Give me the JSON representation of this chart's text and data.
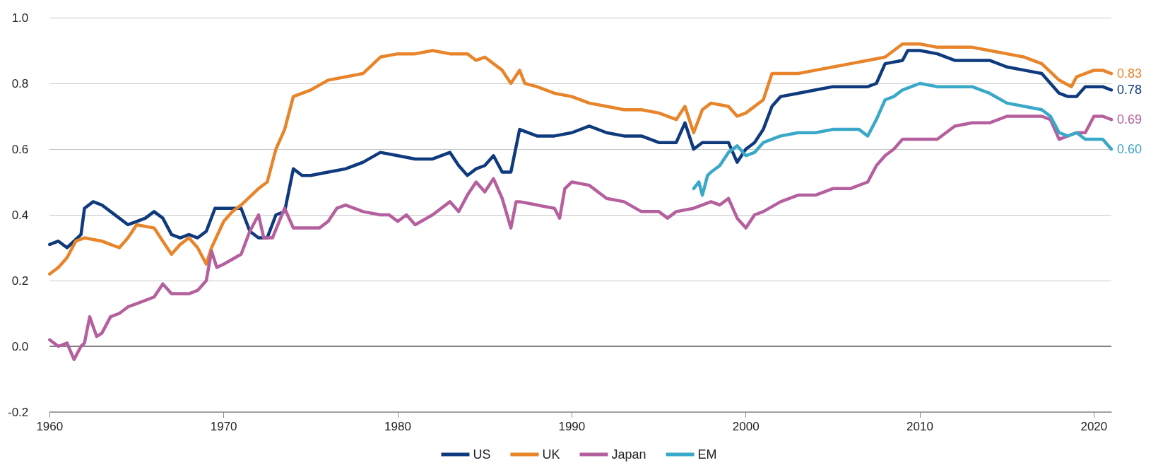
{
  "chart_data": {
    "type": "line",
    "xlim": [
      1960,
      2021
    ],
    "xticks": [
      1960,
      1970,
      1980,
      1990,
      2000,
      2010,
      2020
    ],
    "ylim": [
      -0.2,
      1.0
    ],
    "yticks": [
      {
        "value": -0.2,
        "label": "-0.2"
      },
      {
        "value": 0,
        "label": "0.0"
      },
      {
        "value": 0.2,
        "label": "0.2"
      },
      {
        "value": 0.4,
        "label": "0.4"
      },
      {
        "value": 0.6,
        "label": "0.6"
      },
      {
        "value": 0.8,
        "label": "0.8"
      },
      {
        "value": 1,
        "label": "1.0"
      }
    ],
    "grid": "y",
    "legend": "bottom",
    "line_style": "solid",
    "ref_lines": [
      {
        "axis": "y",
        "value": 0,
        "label": null,
        "color": "#808080"
      }
    ],
    "series": [
      {
        "name": "US",
        "color": "#0f3a7d",
        "x": [
          1960,
          1960.5,
          1961,
          1961.8,
          1962,
          1962.5,
          1963,
          1963.5,
          1964,
          1964.5,
          1965,
          1965.5,
          1966,
          1966.5,
          1967,
          1967.5,
          1968,
          1968.5,
          1969,
          1969.5,
          1970,
          1971,
          1971.5,
          1972,
          1972.5,
          1973,
          1973.5,
          1974,
          1974.5,
          1975,
          1976,
          1977,
          1978,
          1979,
          1980,
          1981,
          1982,
          1983,
          1983.5,
          1984,
          1984.5,
          1985,
          1985.5,
          1986,
          1986.5,
          1987,
          1988,
          1989,
          1990,
          1991,
          1992,
          1993,
          1994,
          1995,
          1996,
          1996.5,
          1997,
          1997.5,
          1998,
          1999,
          1999.5,
          2000,
          2000.5,
          2001,
          2001.5,
          2002,
          2003,
          2004,
          2005,
          2006,
          2007,
          2007.5,
          2008,
          2009,
          2009.3,
          2010,
          2011,
          2012,
          2013,
          2014,
          2015,
          2016,
          2017,
          2017.5,
          2018,
          2018.5,
          2019,
          2019.5,
          2020,
          2020.5,
          2021
        ],
        "values": [
          0.31,
          0.32,
          0.3,
          0.34,
          0.42,
          0.44,
          0.43,
          0.41,
          0.39,
          0.37,
          0.38,
          0.39,
          0.41,
          0.39,
          0.34,
          0.33,
          0.34,
          0.33,
          0.35,
          0.42,
          0.42,
          0.42,
          0.35,
          0.33,
          0.33,
          0.4,
          0.41,
          0.54,
          0.52,
          0.52,
          0.53,
          0.54,
          0.56,
          0.59,
          0.58,
          0.57,
          0.57,
          0.59,
          0.55,
          0.52,
          0.54,
          0.55,
          0.58,
          0.53,
          0.53,
          0.66,
          0.64,
          0.64,
          0.65,
          0.67,
          0.65,
          0.64,
          0.64,
          0.62,
          0.62,
          0.68,
          0.6,
          0.62,
          0.62,
          0.62,
          0.56,
          0.6,
          0.62,
          0.66,
          0.73,
          0.76,
          0.77,
          0.78,
          0.79,
          0.79,
          0.79,
          0.8,
          0.86,
          0.87,
          0.9,
          0.9,
          0.89,
          0.87,
          0.87,
          0.87,
          0.85,
          0.84,
          0.83,
          0.8,
          0.77,
          0.76,
          0.76,
          0.79,
          0.79,
          0.79,
          0.78
        ],
        "value_labels": [
          null,
          null,
          null,
          null,
          null,
          null,
          null,
          null,
          null,
          null,
          null,
          null,
          null,
          null,
          null,
          null,
          null,
          null,
          null,
          null,
          null,
          null,
          null,
          null,
          null,
          null,
          null,
          null,
          null,
          null,
          null,
          null,
          null,
          null,
          null,
          null,
          null,
          null,
          null,
          null,
          null,
          null,
          null,
          null,
          null,
          null,
          null,
          null,
          null,
          null,
          null,
          null,
          null,
          null,
          null,
          null,
          null,
          null,
          null,
          null,
          null,
          null,
          null,
          null,
          null,
          null,
          null,
          null,
          null,
          null,
          null,
          null,
          null,
          null,
          null,
          null,
          null,
          null,
          null,
          null,
          null,
          null,
          null,
          null,
          null,
          null,
          null,
          null,
          null,
          null,
          "0.78"
        ]
      },
      {
        "name": "UK",
        "color": "#e8842a",
        "x": [
          1960,
          1960.5,
          1961,
          1961.5,
          1962,
          1963,
          1963.5,
          1964,
          1964.5,
          1965,
          1966,
          1966.5,
          1967,
          1967.5,
          1968,
          1968.5,
          1969,
          1969.3,
          1970,
          1970.5,
          1971,
          1972,
          1972.5,
          1973,
          1973.5,
          1974,
          1975,
          1976,
          1977,
          1978,
          1979,
          1980,
          1981,
          1982,
          1983,
          1984,
          1984.5,
          1985,
          1986,
          1986.5,
          1987,
          1987.3,
          1988,
          1989,
          1990,
          1991,
          1992,
          1993,
          1994,
          1995,
          1996,
          1996.5,
          1997,
          1997.5,
          1998,
          1999,
          1999.5,
          2000,
          2001,
          2001.5,
          2002,
          2003,
          2004,
          2005,
          2006,
          2007,
          2008,
          2009,
          2010,
          2011,
          2012,
          2013,
          2014,
          2015,
          2016,
          2017,
          2018,
          2018.7,
          2019,
          2020,
          2020.5,
          2021
        ],
        "values": [
          0.22,
          0.24,
          0.27,
          0.32,
          0.33,
          0.32,
          0.31,
          0.3,
          0.33,
          0.37,
          0.36,
          0.32,
          0.28,
          0.31,
          0.33,
          0.3,
          0.25,
          0.3,
          0.38,
          0.41,
          0.43,
          0.48,
          0.5,
          0.6,
          0.66,
          0.76,
          0.78,
          0.81,
          0.82,
          0.83,
          0.88,
          0.89,
          0.89,
          0.9,
          0.89,
          0.89,
          0.87,
          0.88,
          0.84,
          0.8,
          0.84,
          0.8,
          0.79,
          0.77,
          0.76,
          0.74,
          0.73,
          0.72,
          0.72,
          0.71,
          0.69,
          0.73,
          0.65,
          0.72,
          0.74,
          0.73,
          0.7,
          0.71,
          0.75,
          0.83,
          0.83,
          0.83,
          0.84,
          0.85,
          0.86,
          0.87,
          0.88,
          0.92,
          0.92,
          0.91,
          0.91,
          0.91,
          0.9,
          0.89,
          0.88,
          0.86,
          0.81,
          0.79,
          0.82,
          0.84,
          0.84,
          0.83
        ],
        "value_labels": [
          null,
          null,
          null,
          null,
          null,
          null,
          null,
          null,
          null,
          null,
          null,
          null,
          null,
          null,
          null,
          null,
          null,
          null,
          null,
          null,
          null,
          null,
          null,
          null,
          null,
          null,
          null,
          null,
          null,
          null,
          null,
          null,
          null,
          null,
          null,
          null,
          null,
          null,
          null,
          null,
          null,
          null,
          null,
          null,
          null,
          null,
          null,
          null,
          null,
          null,
          null,
          null,
          null,
          null,
          null,
          null,
          null,
          null,
          null,
          null,
          null,
          null,
          null,
          null,
          null,
          null,
          null,
          null,
          null,
          null,
          null,
          null,
          null,
          null,
          null,
          null,
          null,
          null,
          null,
          null,
          null,
          "0.83"
        ]
      },
      {
        "name": "Japan",
        "color": "#b5609e",
        "x": [
          1960,
          1960.5,
          1961,
          1961.4,
          1961.8,
          1962,
          1962.3,
          1962.7,
          1963,
          1963.5,
          1964,
          1964.5,
          1965,
          1966,
          1966.5,
          1967,
          1968,
          1968.5,
          1969,
          1969.3,
          1969.6,
          1970,
          1971,
          1971.5,
          1972,
          1972.3,
          1972.8,
          1973.5,
          1974,
          1975,
          1975.5,
          1976,
          1976.5,
          1977,
          1978,
          1979,
          1979.5,
          1980,
          1980.5,
          1981,
          1982,
          1983,
          1983.5,
          1984,
          1984.5,
          1985,
          1985.5,
          1986,
          1986.5,
          1986.8,
          1987,
          1988,
          1989,
          1989.3,
          1989.6,
          1990,
          1991,
          1992,
          1993,
          1994,
          1995,
          1995.5,
          1996,
          1997,
          1998,
          1998.5,
          1999,
          1999.5,
          2000,
          2000.5,
          2001,
          2002,
          2003,
          2004,
          2005,
          2006,
          2007,
          2007.5,
          2008,
          2008.5,
          2009,
          2010,
          2011,
          2012,
          2013,
          2014,
          2015,
          2016,
          2017,
          2017.5,
          2018,
          2019,
          2019.5,
          2020,
          2020.5,
          2021
        ],
        "values": [
          0.02,
          0.0,
          0.01,
          -0.04,
          0.0,
          0.01,
          0.09,
          0.03,
          0.04,
          0.09,
          0.1,
          0.12,
          0.13,
          0.15,
          0.19,
          0.16,
          0.16,
          0.17,
          0.2,
          0.29,
          0.24,
          0.25,
          0.28,
          0.35,
          0.4,
          0.33,
          0.33,
          0.42,
          0.36,
          0.36,
          0.36,
          0.38,
          0.42,
          0.43,
          0.41,
          0.4,
          0.4,
          0.38,
          0.4,
          0.37,
          0.4,
          0.44,
          0.41,
          0.46,
          0.5,
          0.47,
          0.51,
          0.45,
          0.36,
          0.44,
          0.44,
          0.43,
          0.42,
          0.39,
          0.48,
          0.5,
          0.49,
          0.45,
          0.44,
          0.41,
          0.41,
          0.39,
          0.41,
          0.42,
          0.44,
          0.43,
          0.45,
          0.39,
          0.36,
          0.4,
          0.41,
          0.44,
          0.46,
          0.46,
          0.48,
          0.48,
          0.5,
          0.55,
          0.58,
          0.6,
          0.63,
          0.63,
          0.63,
          0.67,
          0.68,
          0.68,
          0.7,
          0.7,
          0.7,
          0.69,
          0.63,
          0.65,
          0.65,
          0.7,
          0.7,
          0.69
        ],
        "value_labels": [
          null,
          null,
          null,
          null,
          null,
          null,
          null,
          null,
          null,
          null,
          null,
          null,
          null,
          null,
          null,
          null,
          null,
          null,
          null,
          null,
          null,
          null,
          null,
          null,
          null,
          null,
          null,
          null,
          null,
          null,
          null,
          null,
          null,
          null,
          null,
          null,
          null,
          null,
          null,
          null,
          null,
          null,
          null,
          null,
          null,
          null,
          null,
          null,
          null,
          null,
          null,
          null,
          null,
          null,
          null,
          null,
          null,
          null,
          null,
          null,
          null,
          null,
          null,
          null,
          null,
          null,
          null,
          null,
          null,
          null,
          null,
          null,
          null,
          null,
          null,
          null,
          null,
          null,
          null,
          null,
          null,
          null,
          null,
          null,
          null,
          null,
          null,
          null,
          null,
          null,
          null,
          null,
          null,
          null,
          null,
          "0.69"
        ]
      },
      {
        "name": "EM",
        "color": "#3aa8c8",
        "x": [
          1997,
          1997.3,
          1997.5,
          1997.8,
          1998,
          1998.5,
          1999,
          1999.5,
          2000,
          2000.5,
          2001,
          2002,
          2003,
          2004,
          2005,
          2006,
          2006.5,
          2007,
          2007.5,
          2008,
          2008.5,
          2009,
          2010,
          2011,
          2012,
          2013,
          2014,
          2015,
          2016,
          2017,
          2017.5,
          2018,
          2018.5,
          2019,
          2019.5,
          2020,
          2020.5,
          2021
        ],
        "values": [
          0.48,
          0.5,
          0.46,
          0.52,
          0.53,
          0.55,
          0.59,
          0.61,
          0.58,
          0.59,
          0.62,
          0.64,
          0.65,
          0.65,
          0.66,
          0.66,
          0.66,
          0.64,
          0.69,
          0.75,
          0.76,
          0.78,
          0.8,
          0.79,
          0.79,
          0.79,
          0.77,
          0.74,
          0.73,
          0.72,
          0.7,
          0.65,
          0.64,
          0.65,
          0.63,
          0.63,
          0.63,
          0.6
        ],
        "value_labels": [
          null,
          null,
          null,
          null,
          null,
          null,
          null,
          null,
          null,
          null,
          null,
          null,
          null,
          null,
          null,
          null,
          null,
          null,
          null,
          null,
          null,
          null,
          null,
          null,
          null,
          null,
          null,
          null,
          null,
          null,
          null,
          null,
          null,
          null,
          null,
          null,
          null,
          "0.60"
        ]
      }
    ]
  }
}
